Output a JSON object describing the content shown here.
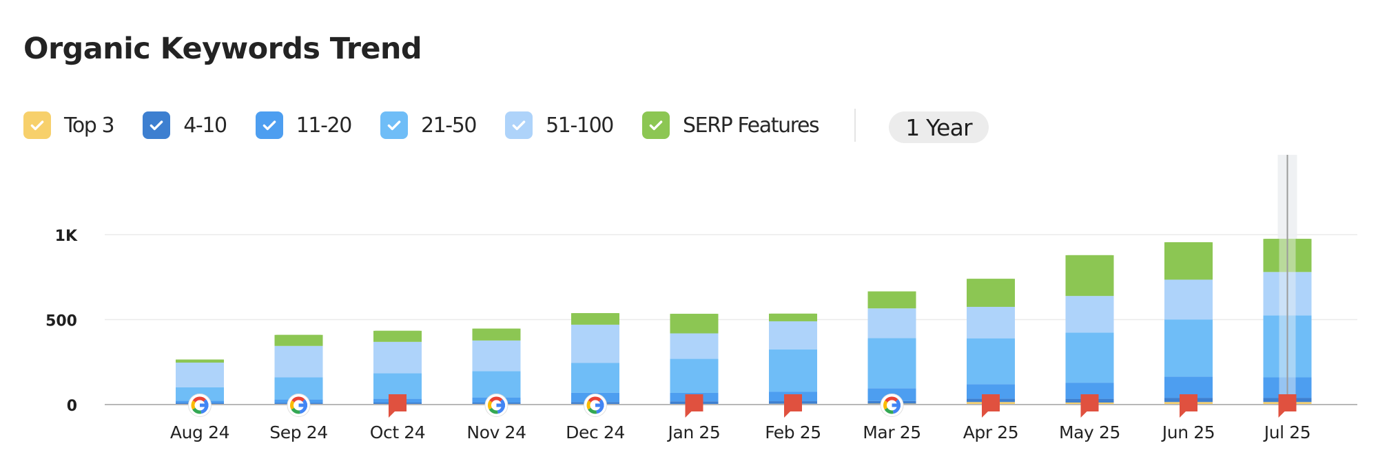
{
  "title": "Organic Keywords Trend",
  "legend": [
    {
      "label": "Top 3",
      "color": "#f7d06b"
    },
    {
      "label": "4-10",
      "color": "#3d7fd0"
    },
    {
      "label": "11-20",
      "color": "#4d9ef0"
    },
    {
      "label": "21-50",
      "color": "#6fbdf7"
    },
    {
      "label": "51-100",
      "color": "#aed3fa"
    },
    {
      "label": "SERP Features",
      "color": "#8cc653"
    }
  ],
  "period": "1 Year",
  "chart_data": {
    "type": "bar",
    "stacked": true,
    "categories": [
      "Aug 24",
      "Sep 24",
      "Oct 24",
      "Nov 24",
      "Dec 24",
      "Jan 25",
      "Feb 25",
      "Mar 25",
      "Apr 25",
      "May 25",
      "Jun 25",
      "Jul 25"
    ],
    "y_ticks": [
      {
        "value": 0,
        "label": "0"
      },
      {
        "value": 500,
        "label": "500"
      },
      {
        "value": 1000,
        "label": "1K"
      }
    ],
    "ylim": [
      0,
      1000
    ],
    "grid": true,
    "series": [
      {
        "name": "Top 3",
        "color": "#f7d06b",
        "values": [
          2,
          2,
          2,
          2,
          3,
          4,
          5,
          6,
          15,
          12,
          15,
          15
        ]
      },
      {
        "name": "4-10",
        "color": "#3d7fd0",
        "values": [
          8,
          8,
          10,
          10,
          12,
          15,
          15,
          15,
          20,
          22,
          25,
          25
        ]
      },
      {
        "name": "11-20",
        "color": "#4d9ef0",
        "values": [
          12,
          20,
          22,
          30,
          55,
          50,
          55,
          75,
          85,
          95,
          125,
          120
        ]
      },
      {
        "name": "21-50",
        "color": "#6fbdf7",
        "values": [
          80,
          130,
          150,
          155,
          175,
          200,
          250,
          295,
          270,
          295,
          335,
          365
        ]
      },
      {
        "name": "51-100",
        "color": "#aed3fa",
        "values": [
          145,
          185,
          185,
          180,
          225,
          150,
          165,
          175,
          185,
          215,
          235,
          255
        ]
      },
      {
        "name": "SERP Features",
        "color": "#8cc653",
        "values": [
          18,
          65,
          65,
          70,
          68,
          115,
          45,
          100,
          165,
          240,
          220,
          195
        ]
      }
    ],
    "markers": [
      "google",
      "google",
      "flag",
      "google",
      "google",
      "flag",
      "flag",
      "google",
      "flag",
      "flag",
      "flag",
      "flag"
    ],
    "highlighted_category": "Jul 25"
  }
}
